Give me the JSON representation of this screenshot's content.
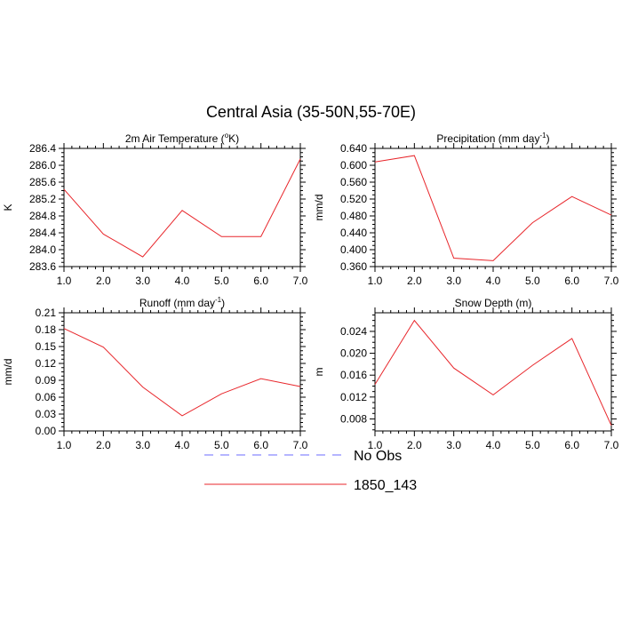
{
  "figure": {
    "title": "Central Asia (35-50N,55-70E)"
  },
  "legend": {
    "entries": [
      {
        "label": "No Obs",
        "color": "#6b6bff",
        "dashed": true
      },
      {
        "label": "1850_143",
        "color": "#e8262b",
        "dashed": false
      }
    ]
  },
  "chart_data": [
    {
      "type": "line",
      "title_main": "2m Air Temperature (",
      "title_sup": "o",
      "title_tail": "K)",
      "ylabel": "K",
      "x": [
        1,
        2,
        3,
        4,
        5,
        6,
        7
      ],
      "xticks": [
        "1.0",
        "2.0",
        "3.0",
        "4.0",
        "5.0",
        "6.0",
        "7.0"
      ],
      "ylim": [
        283.6,
        286.4
      ],
      "yticks": [
        "283.6",
        "284.0",
        "284.4",
        "284.8",
        "285.2",
        "285.6",
        "286.0",
        "286.4"
      ],
      "series": [
        {
          "name": "1850_143",
          "values": [
            285.43,
            284.37,
            283.83,
            284.93,
            284.31,
            284.31,
            286.15
          ]
        }
      ]
    },
    {
      "type": "line",
      "title_main": "Precipitation (mm day",
      "title_sup": "-1",
      "title_tail": ")",
      "ylabel": "mm/d",
      "x": [
        1,
        2,
        3,
        4,
        5,
        6,
        7
      ],
      "xticks": [
        "1.0",
        "2.0",
        "3.0",
        "4.0",
        "5.0",
        "6.0",
        "7.0"
      ],
      "ylim": [
        0.36,
        0.64
      ],
      "yticks": [
        "0.360",
        "0.400",
        "0.440",
        "0.480",
        "0.520",
        "0.560",
        "0.600",
        "0.640"
      ],
      "series": [
        {
          "name": "1850_143",
          "values": [
            0.608,
            0.623,
            0.38,
            0.374,
            0.464,
            0.526,
            0.482
          ]
        }
      ]
    },
    {
      "type": "line",
      "title_main": "Runoff (mm day",
      "title_sup": "-1",
      "title_tail": ")",
      "ylabel": "mm/d",
      "x": [
        1,
        2,
        3,
        4,
        5,
        6,
        7
      ],
      "xticks": [
        "1.0",
        "2.0",
        "3.0",
        "4.0",
        "5.0",
        "6.0",
        "7.0"
      ],
      "ylim": [
        0.0,
        0.21
      ],
      "yticks": [
        "0.00",
        "0.03",
        "0.06",
        "0.09",
        "0.12",
        "0.15",
        "0.18",
        "0.21"
      ],
      "series": [
        {
          "name": "1850_143",
          "values": [
            0.182,
            0.149,
            0.078,
            0.027,
            0.066,
            0.093,
            0.079
          ]
        }
      ]
    },
    {
      "type": "line",
      "title_main": "Snow Depth (m)",
      "title_sup": "",
      "title_tail": "",
      "ylabel": "m",
      "x": [
        1,
        2,
        3,
        4,
        5,
        6,
        7
      ],
      "xticks": [
        "1.0",
        "2.0",
        "3.0",
        "4.0",
        "5.0",
        "6.0",
        "7.0"
      ],
      "ylim": [
        0.0058,
        0.0274
      ],
      "yticks": [
        "0.008",
        "0.012",
        "0.016",
        "0.020",
        "0.024"
      ],
      "ytickvals": [
        0.008,
        0.012,
        0.016,
        0.02,
        0.024
      ],
      "series": [
        {
          "name": "1850_143",
          "values": [
            0.0143,
            0.026,
            0.0173,
            0.0124,
            0.0178,
            0.0227,
            0.0068
          ]
        }
      ]
    }
  ]
}
